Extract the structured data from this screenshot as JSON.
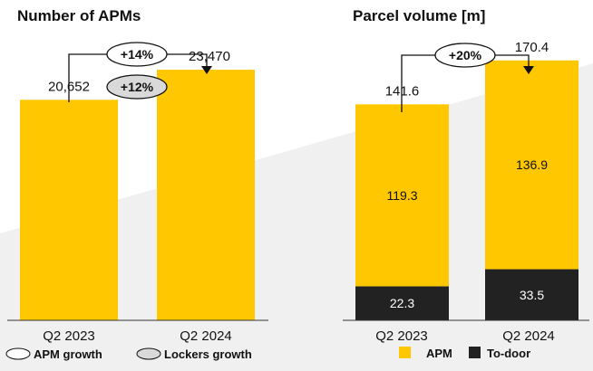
{
  "colors": {
    "apm": "#FFC700",
    "to_door": "#222222",
    "background_gray": "#F0F0F0",
    "lockers_pill": "#D9D9D9"
  },
  "chart_data": [
    {
      "type": "bar",
      "title": "Number of APMs",
      "categories": [
        "Q2 2023",
        "Q2 2024"
      ],
      "values": [
        20652,
        23470
      ],
      "value_labels": [
        "20,652",
        "23,470"
      ],
      "ylim": [
        0,
        30000
      ],
      "growth": [
        {
          "label": "+14%",
          "kind": "APM growth"
        },
        {
          "label": "+12%",
          "kind": "Lockers growth"
        }
      ],
      "legend": [
        "APM growth",
        "Lockers growth"
      ]
    },
    {
      "type": "bar",
      "stacked": true,
      "title": "Parcel volume [m]",
      "categories": [
        "Q2 2023",
        "Q2 2024"
      ],
      "series": [
        {
          "name": "To-door",
          "values": [
            22.3,
            33.5
          ],
          "labels": [
            "22.3",
            "33.5"
          ]
        },
        {
          "name": "APM",
          "values": [
            119.3,
            136.9
          ],
          "labels": [
            "119.3",
            "136.9"
          ]
        }
      ],
      "totals": [
        141.6,
        170.4
      ],
      "total_labels": [
        "141.6",
        "170.4"
      ],
      "ylim": [
        0,
        210
      ],
      "growth": [
        {
          "label": "+20%"
        }
      ],
      "legend": [
        "APM",
        "To-door"
      ]
    }
  ]
}
